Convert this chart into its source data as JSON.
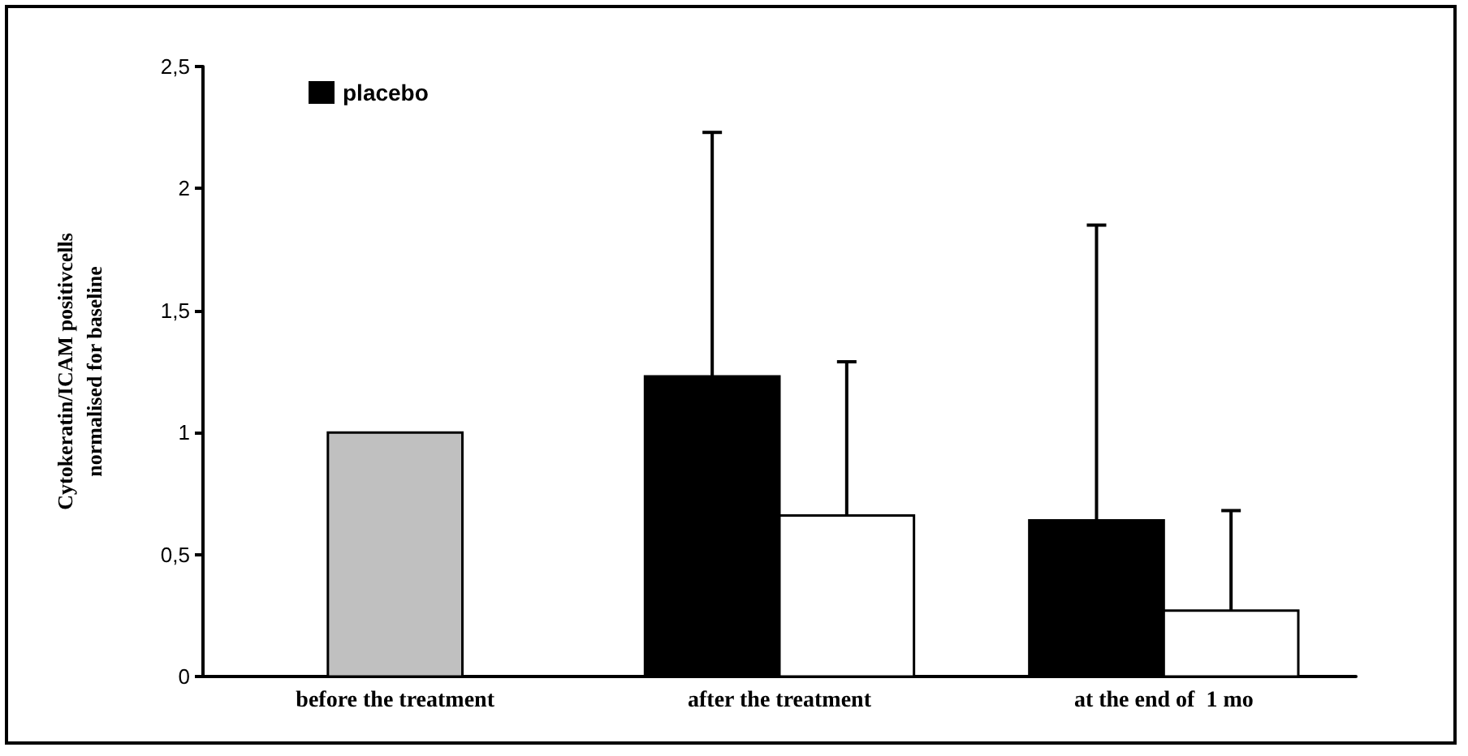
{
  "chart_data": {
    "type": "bar",
    "ylabel": "Cytokeratin/ICAM positivcells\nnormalised for baseline",
    "categories": [
      "before the treatment",
      "after the treatment",
      "at the end of  1 mo"
    ],
    "series": [
      {
        "color": "#c0c0c0",
        "values": [
          1.0,
          null,
          null
        ],
        "errors": [
          null,
          null,
          null
        ]
      },
      {
        "name": "placebo",
        "color": "#000000",
        "values": [
          null,
          1.23,
          0.64
        ],
        "errors": [
          null,
          [
            1.23,
            2.23
          ],
          [
            0.64,
            1.85
          ]
        ]
      },
      {
        "color": "#ffffff",
        "values": [
          null,
          0.66,
          0.27
        ],
        "errors": [
          null,
          [
            0.66,
            1.29
          ],
          [
            0.27,
            0.68
          ]
        ]
      }
    ],
    "ylim": [
      0,
      2.5
    ],
    "yticks": [
      0,
      {
        "value": 0.5,
        "label": "0,5"
      },
      1,
      {
        "value": 1.5,
        "label": "1,5"
      },
      2,
      {
        "value": 2.5,
        "label": "2,5"
      }
    ],
    "grid": false,
    "legend": "top left"
  }
}
